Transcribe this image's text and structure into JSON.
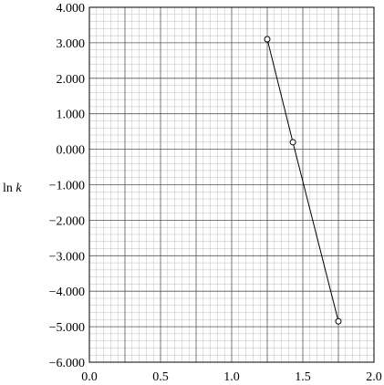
{
  "chart_data": {
    "type": "line",
    "title": "",
    "xlabel": "",
    "ylabel_prefix": "ln ",
    "ylabel_var": "k",
    "xlim": [
      0.0,
      2.0
    ],
    "ylim": [
      -6.0,
      4.0
    ],
    "x_ticks": [
      0.0,
      0.5,
      1.0,
      1.5,
      2.0
    ],
    "x_tick_labels": [
      "0.0",
      "0.5",
      "1.0",
      "1.5",
      "2.0"
    ],
    "y_ticks": [
      4.0,
      3.0,
      2.0,
      1.0,
      0.0,
      -1.0,
      -2.0,
      -3.0,
      -4.0,
      -5.0,
      -6.0
    ],
    "y_tick_labels": [
      "4.000",
      "3.000",
      "2.000",
      "1.000",
      "0.000",
      "−1.000",
      "−2.000",
      "−3.000",
      "−4.000",
      "−5.000",
      "−6.000"
    ],
    "grid": true,
    "series": [
      {
        "x": [
          1.25,
          1.43,
          1.75
        ],
        "y": [
          3.1,
          0.2,
          -4.85
        ],
        "marker": "open-circle"
      }
    ]
  }
}
